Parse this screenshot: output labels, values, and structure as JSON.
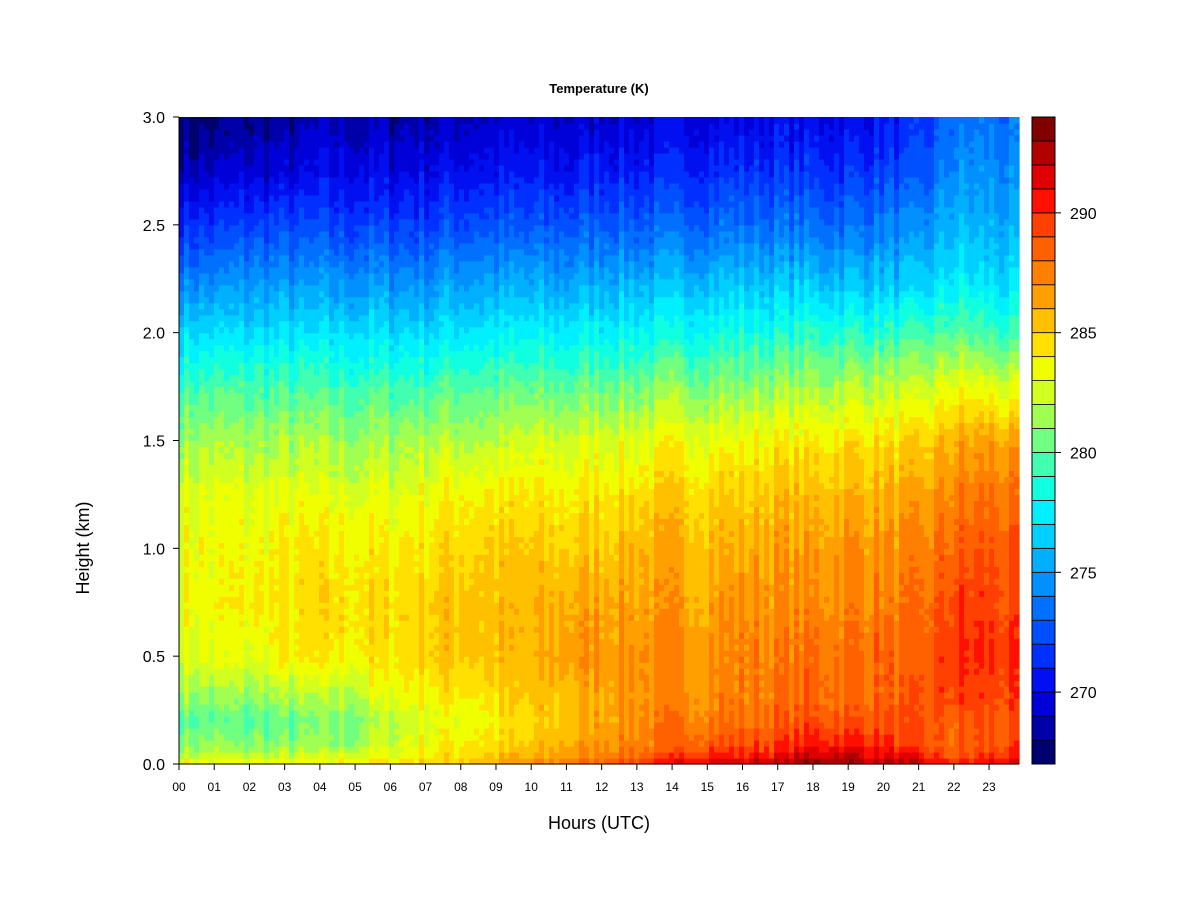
{
  "chart_data": {
    "type": "heatmap",
    "title": "Temperature (K)",
    "xlabel": "Hours (UTC)",
    "ylabel": "Height (km)",
    "x_ticks": [
      "00",
      "01",
      "02",
      "03",
      "04",
      "05",
      "06",
      "07",
      "08",
      "09",
      "10",
      "11",
      "12",
      "13",
      "14",
      "15",
      "16",
      "17",
      "18",
      "19",
      "20",
      "21",
      "22",
      "23"
    ],
    "x_range": [
      0,
      23.85
    ],
    "y_ticks": [
      "0.0",
      "0.5",
      "1.0",
      "1.5",
      "2.0",
      "2.5",
      "3.0"
    ],
    "y_range": [
      0,
      3.0
    ],
    "colorbar": {
      "range": [
        267,
        294
      ],
      "levels": 27,
      "tick_values": [
        270,
        275,
        280,
        285,
        290
      ],
      "tick_labels": [
        "270",
        "275",
        "280",
        "285",
        "290"
      ],
      "colors": [
        "#00006e",
        "#0000a8",
        "#0000d8",
        "#0010f0",
        "#0030ff",
        "#0050ff",
        "#0070ff",
        "#0090ff",
        "#00b0ff",
        "#00d0ff",
        "#00f0ff",
        "#10ffe0",
        "#40ffb0",
        "#70ff80",
        "#a0ff50",
        "#d0ff20",
        "#f0ff00",
        "#ffe000",
        "#ffc000",
        "#ffa000",
        "#ff8000",
        "#ff6000",
        "#ff4000",
        "#ff1000",
        "#e00000",
        "#b00000",
        "#800000"
      ]
    },
    "x": [
      0,
      1,
      2,
      3,
      4,
      5,
      6,
      7,
      8,
      9,
      10,
      11,
      12,
      13,
      14,
      15,
      16,
      17,
      18,
      19,
      20,
      21,
      22,
      23,
      23.85
    ],
    "y": [
      0.0,
      0.02,
      0.05,
      0.1,
      0.2,
      0.3,
      0.5,
      0.75,
      1.0,
      1.25,
      1.5,
      1.75,
      2.0,
      2.25,
      2.5,
      2.75,
      3.0
    ],
    "z": [
      [
        284,
        283.5,
        283.5,
        283.5,
        283.5,
        284,
        284.5,
        285,
        285.5,
        286,
        287,
        288,
        289,
        289.5,
        291,
        292,
        292,
        292.5,
        293,
        293,
        293,
        292,
        290,
        291,
        291
      ],
      [
        283,
        283,
        283,
        283,
        283,
        283.5,
        284,
        284.5,
        285,
        285.5,
        286.5,
        287,
        288.5,
        289,
        290,
        291,
        291,
        291.5,
        292.5,
        292.5,
        292,
        291,
        289.5,
        290.5,
        290.5
      ],
      [
        282,
        282,
        282,
        282,
        282,
        282.5,
        283,
        284,
        284.5,
        285,
        285.5,
        286.5,
        287.5,
        288,
        289,
        290,
        290,
        290.5,
        291.5,
        292,
        291,
        290,
        288.5,
        289.5,
        289.5
      ],
      [
        281,
        281,
        281,
        281,
        281,
        281.5,
        282.5,
        283.5,
        284,
        284.5,
        285,
        286,
        287,
        287.5,
        288,
        289,
        289,
        289.5,
        290.5,
        290.5,
        290,
        289,
        288,
        289,
        289
      ],
      [
        280,
        280,
        280,
        280,
        280.5,
        281,
        282,
        283,
        283.5,
        284,
        284.5,
        285.5,
        286.5,
        287,
        287.5,
        288,
        288,
        288.5,
        289,
        289,
        289,
        288.5,
        288.5,
        289,
        288.5
      ],
      [
        281.5,
        281,
        281,
        281.5,
        281.5,
        282,
        283,
        284,
        284,
        284.5,
        285,
        285.5,
        286.5,
        287,
        287,
        287.5,
        287.5,
        288,
        288.5,
        288.5,
        288.5,
        288.5,
        289.5,
        289.5,
        289
      ],
      [
        283,
        283,
        283,
        284,
        284,
        284,
        284.5,
        285,
        285.5,
        285.5,
        285.5,
        286.5,
        287,
        287,
        287,
        287,
        287.5,
        287.5,
        288,
        288,
        288.5,
        288,
        290,
        290,
        289.5
      ],
      [
        283.5,
        283.5,
        284,
        284,
        284.5,
        284.5,
        284.5,
        285,
        285.5,
        285.5,
        285.5,
        286,
        286.5,
        286.5,
        286.5,
        286.5,
        287,
        287,
        287,
        287.5,
        287.5,
        287.5,
        289.5,
        289.5,
        289
      ],
      [
        283.5,
        283.5,
        283.5,
        284,
        284,
        284,
        284,
        284.5,
        285,
        285,
        285,
        285,
        285.5,
        286,
        286,
        286,
        286,
        286.5,
        286.5,
        287,
        287,
        287,
        288.5,
        289,
        288.5
      ],
      [
        283,
        283,
        283,
        283,
        283,
        283,
        283,
        283.5,
        284,
        284,
        284,
        284,
        284.5,
        284.5,
        285,
        285,
        285,
        285.5,
        285.5,
        286,
        286,
        286,
        287.5,
        288,
        287.5
      ],
      [
        281.5,
        281.5,
        281.5,
        281.5,
        281.5,
        281.5,
        281.5,
        282,
        282,
        282,
        282.5,
        282.5,
        283,
        283,
        283.5,
        283.5,
        283.5,
        284,
        284,
        284.5,
        284.5,
        284.5,
        286,
        286.5,
        286
      ],
      [
        279.5,
        279.5,
        279.5,
        279.5,
        279.5,
        279.5,
        279.5,
        279.5,
        280,
        280,
        280,
        280,
        280.5,
        280.5,
        281,
        281,
        281,
        281.5,
        281.5,
        282,
        282,
        282,
        283.5,
        283,
        282.5
      ],
      [
        277,
        277,
        277,
        277,
        277,
        277,
        277,
        277,
        277.5,
        277.5,
        277.5,
        277.5,
        278,
        278,
        278,
        278.5,
        278.5,
        278.5,
        279,
        279,
        279,
        279,
        280,
        279.5,
        279
      ],
      [
        274,
        274,
        274.5,
        274.5,
        274.5,
        274.5,
        274.5,
        274.5,
        275,
        275,
        275,
        275,
        275.5,
        275.5,
        275.5,
        276,
        276,
        276,
        276,
        276,
        276,
        276,
        277.5,
        277,
        276.5
      ],
      [
        271.5,
        271.5,
        272,
        272,
        272,
        272,
        272,
        272,
        272.5,
        272.5,
        272.5,
        272.5,
        273,
        273,
        273,
        273.5,
        273.5,
        273.5,
        273.5,
        273.5,
        274,
        274,
        276,
        275.5,
        275
      ],
      [
        269,
        269,
        269.5,
        269.5,
        270,
        270,
        270,
        270,
        270.5,
        270.5,
        270.5,
        270.5,
        271,
        271,
        271,
        271.5,
        271.5,
        271.5,
        271.5,
        271.5,
        272,
        272,
        274.5,
        274.5,
        274
      ],
      [
        267.5,
        267.5,
        268,
        268,
        268.5,
        268.5,
        268.5,
        268.5,
        269,
        269,
        269,
        269,
        269.5,
        269.5,
        269.5,
        270,
        270,
        270,
        270,
        270,
        270.5,
        271,
        273.5,
        273.5,
        273
      ]
    ]
  }
}
